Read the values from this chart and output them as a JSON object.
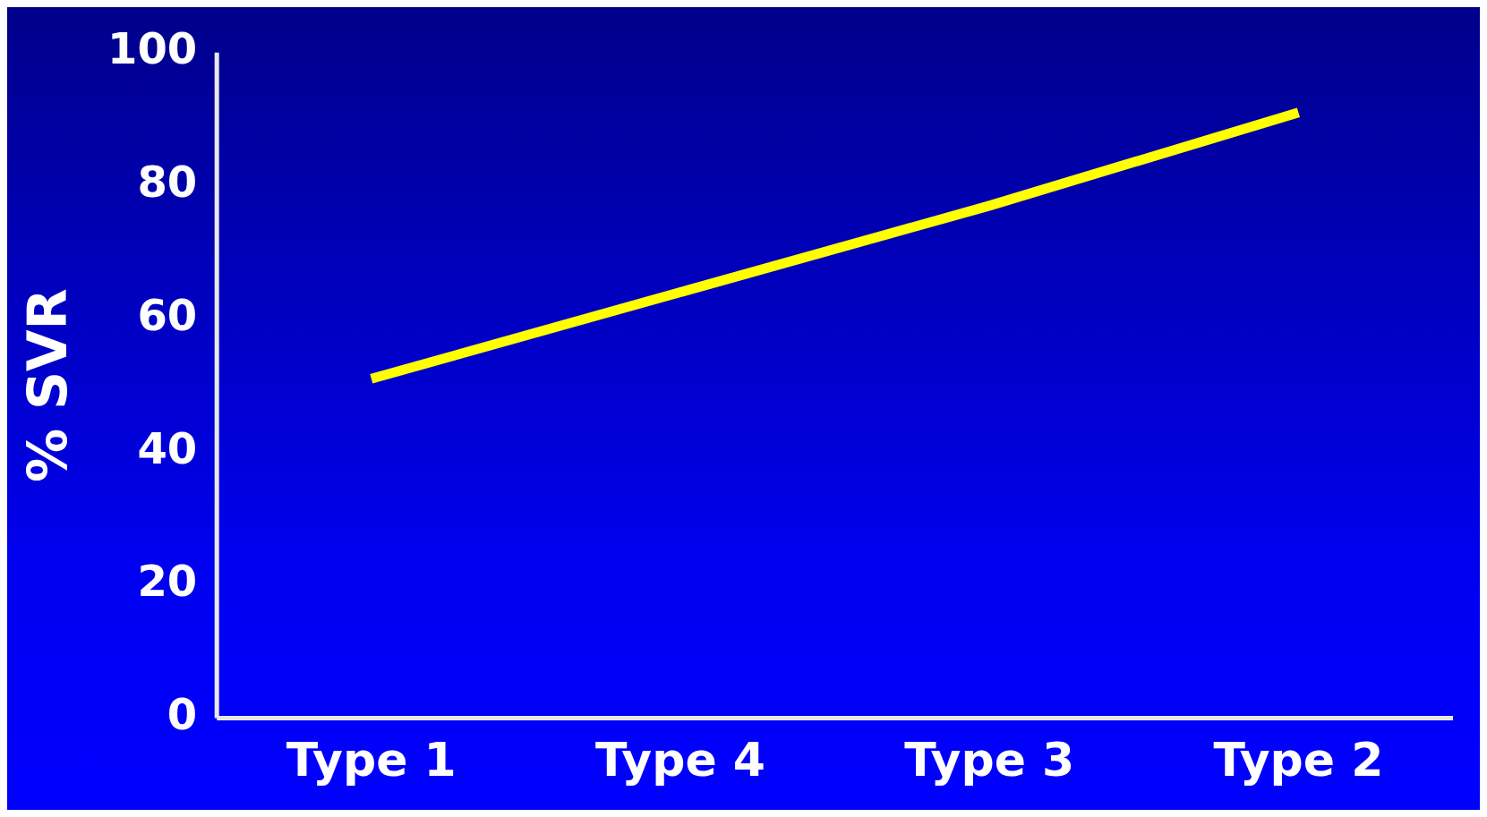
{
  "chart_data": {
    "type": "line",
    "ylabel": "% SVR",
    "categories": [
      "Type 1",
      "Type 4",
      "Type 3",
      "Type 2"
    ],
    "series": [
      {
        "color": "#ffff00",
        "values": [
          51,
          64,
          77,
          91
        ]
      }
    ],
    "ylim": [
      0,
      100
    ],
    "yticks": [
      0,
      20,
      40,
      60,
      80,
      100
    ],
    "grid": false,
    "marker": "none"
  }
}
